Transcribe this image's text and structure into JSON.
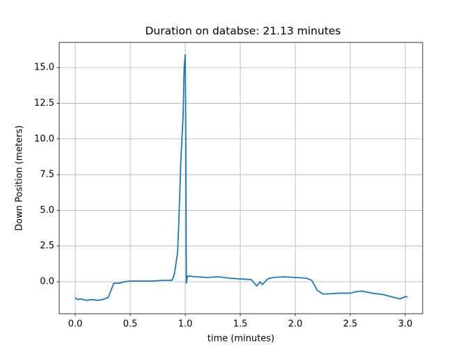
{
  "chart_data": {
    "type": "line",
    "title": "Duration on databse: 21.13 minutes",
    "x_label": "time (minutes)",
    "y_label": "Down Position (meters)",
    "xlim": [
      -0.146,
      3.158
    ],
    "ylim": [
      -2.24,
      16.76
    ],
    "xticks": [
      {
        "value": 0,
        "label": "0.0"
      },
      0.5,
      {
        "value": 1,
        "label": "1.0"
      },
      1.5,
      {
        "value": 2,
        "label": "2.0"
      },
      2.5,
      {
        "value": 3,
        "label": "3.0"
      }
    ],
    "yticks": [
      {
        "value": 0,
        "label": "0.0"
      },
      2.5,
      {
        "value": 5,
        "label": "5.0"
      },
      7.5,
      {
        "value": 10,
        "label": "10.0"
      },
      12.5,
      {
        "value": 15,
        "label": "15.0"
      }
    ],
    "grid": true,
    "series": [
      {
        "color": "#1f77b4",
        "x": [
          0.0,
          0.02,
          0.05,
          0.1,
          0.15,
          0.2,
          0.25,
          0.3,
          0.33,
          0.35,
          0.4,
          0.45,
          0.5,
          0.6,
          0.7,
          0.8,
          0.88,
          0.9,
          0.93,
          0.94,
          0.96,
          0.98,
          0.99,
          1.0,
          1.005,
          1.01,
          1.02,
          1.1,
          1.2,
          1.3,
          1.4,
          1.5,
          1.6,
          1.65,
          1.68,
          1.7,
          1.75,
          1.8,
          1.9,
          2.0,
          2.1,
          2.15,
          2.2,
          2.25,
          2.3,
          2.4,
          2.5,
          2.55,
          2.6,
          2.7,
          2.8,
          2.9,
          2.95,
          3.0,
          3.02
        ],
        "values": [
          -1.1,
          -1.25,
          -1.2,
          -1.3,
          -1.25,
          -1.3,
          -1.25,
          -1.1,
          -0.5,
          -0.1,
          -0.1,
          0.0,
          0.05,
          0.05,
          0.05,
          0.1,
          0.1,
          0.5,
          2.0,
          3.8,
          8.5,
          11.5,
          15.0,
          15.9,
          10,
          -0.1,
          0.4,
          0.35,
          0.3,
          0.35,
          0.25,
          0.2,
          0.15,
          -0.3,
          0.0,
          -0.2,
          0.2,
          0.3,
          0.35,
          0.3,
          0.25,
          0.1,
          -0.6,
          -0.85,
          -0.85,
          -0.8,
          -0.8,
          -0.7,
          -0.65,
          -0.8,
          -0.9,
          -1.1,
          -1.2,
          -1.05,
          -1.05
        ]
      }
    ]
  }
}
